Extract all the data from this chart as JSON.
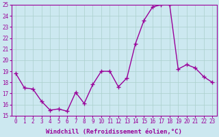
{
  "x": [
    0,
    1,
    2,
    3,
    4,
    5,
    6,
    7,
    8,
    9,
    10,
    11,
    12,
    13,
    14,
    15,
    16,
    17,
    18,
    19,
    20,
    21,
    22,
    23
  ],
  "y": [
    18.8,
    17.5,
    17.4,
    16.3,
    15.5,
    15.6,
    15.4,
    17.1,
    16.1,
    17.8,
    19.0,
    19.0,
    17.6,
    18.4,
    21.5,
    23.6,
    24.8,
    25.0,
    25.0,
    19.2,
    19.6,
    19.3,
    18.5,
    18.0
  ],
  "line_color": "#990099",
  "marker": "+",
  "marker_size": 4,
  "bg_color": "#cce8f0",
  "grid_color": "#aacfcc",
  "xlabel": "Windchill (Refroidissement éolien,°C)",
  "ylim": [
    15,
    25
  ],
  "xlim_min": -0.5,
  "xlim_max": 23.5,
  "yticks": [
    15,
    16,
    17,
    18,
    19,
    20,
    21,
    22,
    23,
    24,
    25
  ],
  "xticks": [
    0,
    1,
    2,
    3,
    4,
    5,
    6,
    7,
    8,
    9,
    10,
    11,
    12,
    13,
    14,
    15,
    16,
    17,
    18,
    19,
    20,
    21,
    22,
    23
  ],
  "tick_fontsize": 5.5,
  "xlabel_fontsize": 6.5,
  "linewidth": 1.0,
  "linestyle": "-"
}
